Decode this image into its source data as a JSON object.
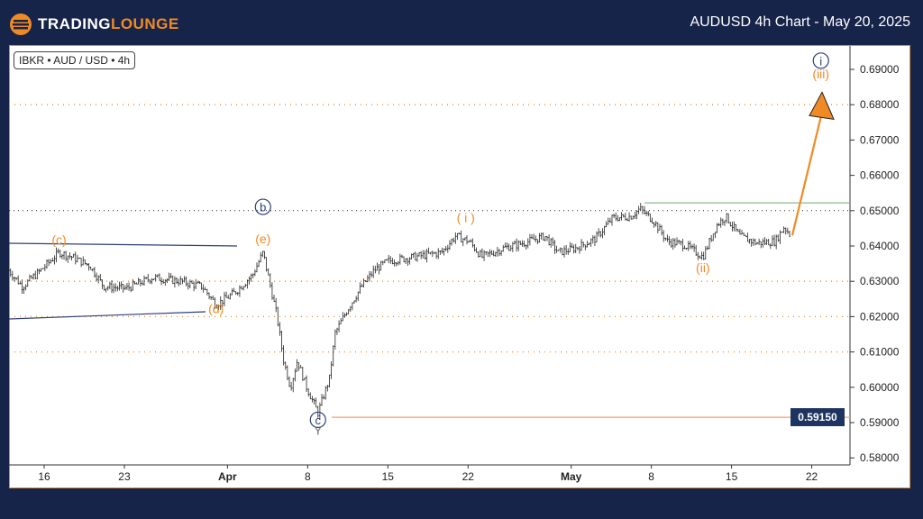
{
  "header": {
    "brand_a": "TRADING",
    "brand_b": "LOUNGE",
    "title": "AUDUSD 4h Chart - May 20, 2025"
  },
  "symbol_tag": "IBKR • AUD / USD • 4h",
  "colors": {
    "accent": "#f08a24",
    "navy": "#17244a",
    "wave_blue": "#2d3f7a",
    "green": "#6aa86a"
  },
  "chart_data": {
    "type": "candlestick",
    "title": "AUDUSD 4h Chart - May 20, 2025",
    "ylim": [
      0.577,
      0.695
    ],
    "y_ticks": [
      "0.69000",
      "0.68000",
      "0.67000",
      "0.66000",
      "0.65000",
      "0.64000",
      "0.63000",
      "0.62000",
      "0.61000",
      "0.60000",
      "0.59000",
      "0.58000"
    ],
    "x_ticks": [
      {
        "label": "16",
        "day": 0
      },
      {
        "label": "23",
        "day": 7
      },
      {
        "label": "Apr",
        "day": 16
      },
      {
        "label": "8",
        "day": 23
      },
      {
        "label": "15",
        "day": 30
      },
      {
        "label": "22",
        "day": 37
      },
      {
        "label": "May",
        "day": 46
      },
      {
        "label": "8",
        "day": 53
      },
      {
        "label": "15",
        "day": 60
      },
      {
        "label": "22",
        "day": 67
      }
    ],
    "price_path_day_since_mar16": [
      [
        -3.1,
        0.6331
      ],
      [
        -1.9,
        0.6285
      ],
      [
        -0.3,
        0.6331
      ],
      [
        1.3,
        0.6382
      ],
      [
        2.4,
        0.6369
      ],
      [
        4.0,
        0.6344
      ],
      [
        5.2,
        0.6285
      ],
      [
        7.2,
        0.628
      ],
      [
        9.5,
        0.6311
      ],
      [
        11.9,
        0.63
      ],
      [
        13.8,
        0.6285
      ],
      [
        15.0,
        0.6234
      ],
      [
        16.6,
        0.6267
      ],
      [
        18.2,
        0.6318
      ],
      [
        19.1,
        0.6382
      ],
      [
        19.7,
        0.6293
      ],
      [
        20.3,
        0.6204
      ],
      [
        20.9,
        0.6076
      ],
      [
        21.5,
        0.6
      ],
      [
        22.1,
        0.6076
      ],
      [
        22.9,
        0.6
      ],
      [
        23.9,
        0.5928
      ],
      [
        24.9,
        0.6025
      ],
      [
        25.4,
        0.6153
      ],
      [
        26.4,
        0.6216
      ],
      [
        27.6,
        0.628
      ],
      [
        28.8,
        0.6331
      ],
      [
        30.0,
        0.6357
      ],
      [
        32.3,
        0.6369
      ],
      [
        34.7,
        0.6382
      ],
      [
        35.9,
        0.6428
      ],
      [
        37.1,
        0.6413
      ],
      [
        38.2,
        0.6369
      ],
      [
        40.2,
        0.6395
      ],
      [
        41.8,
        0.6408
      ],
      [
        43.7,
        0.6428
      ],
      [
        44.9,
        0.6382
      ],
      [
        46.5,
        0.6395
      ],
      [
        48.1,
        0.642
      ],
      [
        49.6,
        0.6479
      ],
      [
        51.2,
        0.6484
      ],
      [
        52.0,
        0.6505
      ],
      [
        53.2,
        0.6471
      ],
      [
        54.4,
        0.6413
      ],
      [
        55.9,
        0.6403
      ],
      [
        57.5,
        0.6369
      ],
      [
        58.7,
        0.6459
      ],
      [
        59.5,
        0.6484
      ],
      [
        60.7,
        0.6428
      ],
      [
        62.2,
        0.6408
      ],
      [
        63.8,
        0.6413
      ],
      [
        64.6,
        0.6454
      ],
      [
        65.2,
        0.6428
      ]
    ],
    "levels": {
      "dotted_orange": [
        0.68,
        0.63,
        0.62,
        0.61
      ],
      "dotted_black": [
        0.65
      ],
      "green_resistance": 0.6522,
      "invalidation": 0.5915,
      "invalidation_label": "0.59150"
    },
    "wave_labels": [
      {
        "text": "(c)",
        "day": 1.3,
        "price": 0.6405,
        "color": "orange"
      },
      {
        "text": "b",
        "day": 19.1,
        "price": 0.6498,
        "color": "blue",
        "circled": true
      },
      {
        "text": "(e)",
        "day": 19.1,
        "price": 0.6408,
        "color": "orange"
      },
      {
        "text": "(d)",
        "day": 15.0,
        "price": 0.621,
        "color": "orange"
      },
      {
        "text": "c",
        "day": 23.9,
        "price": 0.5895,
        "color": "blue",
        "circled": true
      },
      {
        "text": "Y",
        "day": 23.9,
        "price": 0.5865,
        "color": "gray"
      },
      {
        "text": "( i )",
        "day": 36.8,
        "price": 0.6468,
        "color": "orange"
      },
      {
        "text": "(ii)",
        "day": 57.5,
        "price": 0.6326,
        "color": "orange"
      },
      {
        "text": "i",
        "day": 67.8,
        "price": 0.6912,
        "color": "blue",
        "circled": true
      },
      {
        "text": "(iii)",
        "day": 67.8,
        "price": 0.6875,
        "color": "orange"
      }
    ],
    "projection_arrow": {
      "from": [
        65.3,
        0.643
      ],
      "to": [
        67.9,
        0.6815
      ]
    }
  }
}
